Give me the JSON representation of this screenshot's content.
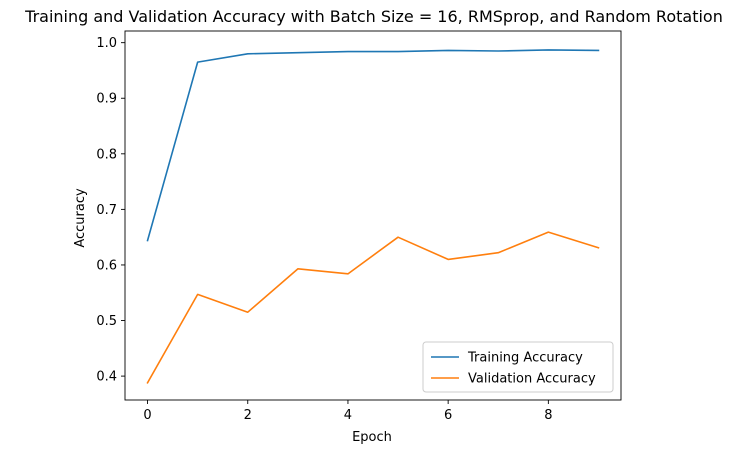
{
  "chart_data": {
    "type": "line",
    "title": "Training and Validation Accuracy with Batch Size = 16, RMSprop, and Random Rotation",
    "xlabel": "Epoch",
    "ylabel": "Accuracy",
    "x": [
      0,
      1,
      2,
      3,
      4,
      5,
      6,
      7,
      8,
      9
    ],
    "xlim": [
      -0.45,
      9.45
    ],
    "ylim": [
      0.357,
      1.021
    ],
    "xticks": [
      0,
      2,
      4,
      6,
      8
    ],
    "yticks": [
      0.4,
      0.5,
      0.6,
      0.7,
      0.8,
      0.9,
      1.0
    ],
    "ytick_labels": [
      "0.4",
      "0.5",
      "0.6",
      "0.7",
      "0.8",
      "0.9",
      "1.0"
    ],
    "grid": false,
    "legend_position": "lower-right",
    "series": [
      {
        "name": "Training Accuracy",
        "color": "#1f77b4",
        "values": [
          0.644,
          0.965,
          0.98,
          0.982,
          0.984,
          0.984,
          0.986,
          0.985,
          0.987,
          0.986
        ]
      },
      {
        "name": "Validation Accuracy",
        "color": "#ff7f0e",
        "values": [
          0.388,
          0.547,
          0.515,
          0.593,
          0.584,
          0.65,
          0.61,
          0.622,
          0.659,
          0.631
        ]
      }
    ]
  }
}
